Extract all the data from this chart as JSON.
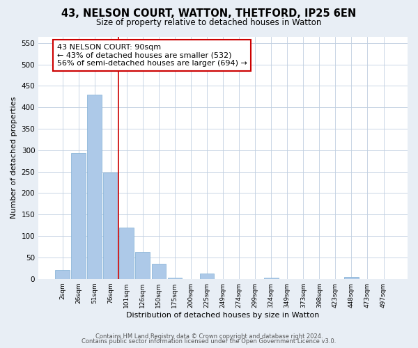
{
  "title": "43, NELSON COURT, WATTON, THETFORD, IP25 6EN",
  "subtitle": "Size of property relative to detached houses in Watton",
  "xlabel": "Distribution of detached houses by size in Watton",
  "ylabel": "Number of detached properties",
  "bar_labels": [
    "2sqm",
    "26sqm",
    "51sqm",
    "76sqm",
    "101sqm",
    "126sqm",
    "150sqm",
    "175sqm",
    "200sqm",
    "225sqm",
    "249sqm",
    "274sqm",
    "299sqm",
    "324sqm",
    "349sqm",
    "373sqm",
    "398sqm",
    "423sqm",
    "448sqm",
    "473sqm",
    "497sqm"
  ],
  "bar_values": [
    20,
    293,
    430,
    248,
    119,
    63,
    36,
    3,
    0,
    13,
    0,
    0,
    0,
    3,
    0,
    0,
    0,
    0,
    5,
    0,
    0
  ],
  "bar_color": "#adc9e8",
  "bar_edge_color": "#7fafd4",
  "vline_color": "#cc0000",
  "annotation_text": "43 NELSON COURT: 90sqm\n← 43% of detached houses are smaller (532)\n56% of semi-detached houses are larger (694) →",
  "annotation_box_color": "white",
  "annotation_box_edge_color": "#cc0000",
  "ylim": [
    0,
    565
  ],
  "yticks": [
    0,
    50,
    100,
    150,
    200,
    250,
    300,
    350,
    400,
    450,
    500,
    550
  ],
  "footer_line1": "Contains HM Land Registry data © Crown copyright and database right 2024.",
  "footer_line2": "Contains public sector information licensed under the Open Government Licence v3.0.",
  "bg_color": "#e8eef5",
  "plot_bg_color": "#ffffff"
}
